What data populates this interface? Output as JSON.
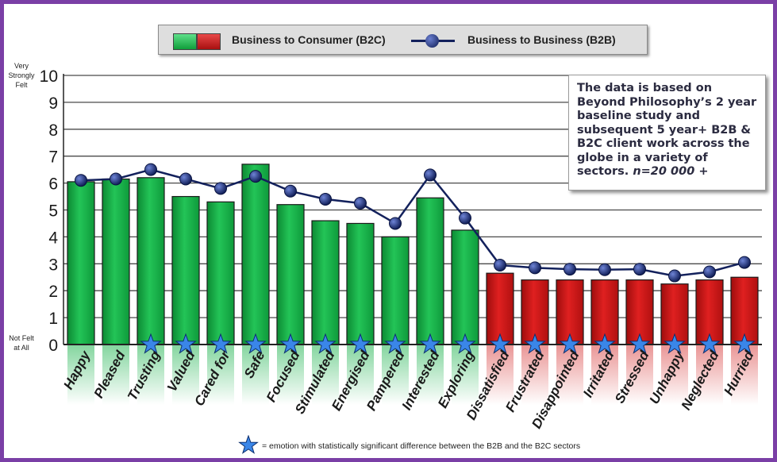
{
  "chart_data": {
    "type": "bar",
    "title": "",
    "xlabel": "",
    "ylabel": "",
    "ylim": [
      0,
      10
    ],
    "yticks": [
      0,
      1,
      2,
      3,
      4,
      5,
      6,
      7,
      8,
      9,
      10
    ],
    "y_axis_top_label": "Very Strongly Felt",
    "y_axis_bottom_label": "Not Felt at All",
    "grid": true,
    "legend_position": "top",
    "categories": [
      "Happy",
      "Pleased",
      "Trusting",
      "Valued",
      "Cared for",
      "Safe",
      "Focused",
      "Stimulated",
      "Energised",
      "Pampered",
      "Interested",
      "Exploring",
      "Dissatisfied",
      "Frustrated",
      "Disappointed",
      "Irritated",
      "Stressed",
      "Unhappy",
      "Neglected",
      "Hurried"
    ],
    "series": [
      {
        "name": "Business to Consumer  (B2C)",
        "kind": "bar",
        "values": [
          6.05,
          6.15,
          6.2,
          5.5,
          5.3,
          6.7,
          5.2,
          4.6,
          4.5,
          4.0,
          5.45,
          4.25,
          2.65,
          2.4,
          2.4,
          2.4,
          2.4,
          2.25,
          2.4,
          2.5
        ]
      },
      {
        "name": "Business to Business (B2B)",
        "kind": "line",
        "values": [
          6.1,
          6.15,
          6.5,
          6.15,
          5.8,
          6.25,
          5.7,
          5.4,
          5.25,
          4.5,
          6.3,
          4.7,
          2.95,
          2.85,
          2.8,
          2.78,
          2.8,
          2.55,
          2.7,
          3.05
        ]
      }
    ],
    "bar_colors": {
      "positive": "#16b44c",
      "negative": "#cf1515",
      "positive_count": 12
    },
    "line_color": "#13215c",
    "significant": [
      false,
      false,
      true,
      true,
      true,
      true,
      true,
      true,
      true,
      true,
      true,
      true,
      true,
      true,
      true,
      true,
      true,
      true,
      true,
      true
    ],
    "star_color": "#3a86e8",
    "note_text": "The data is based on Beyond Philosophy’s 2 year baseline study and subsequent 5 year+ B2B & B2C client work across the globe in a variety of sectors.",
    "note_n": "n=20 000 +",
    "footnote": "= emotion with statistically  significant  difference  between the B2B and the B2C sectors"
  },
  "colors": {
    "frame": "#7a3fa6"
  }
}
